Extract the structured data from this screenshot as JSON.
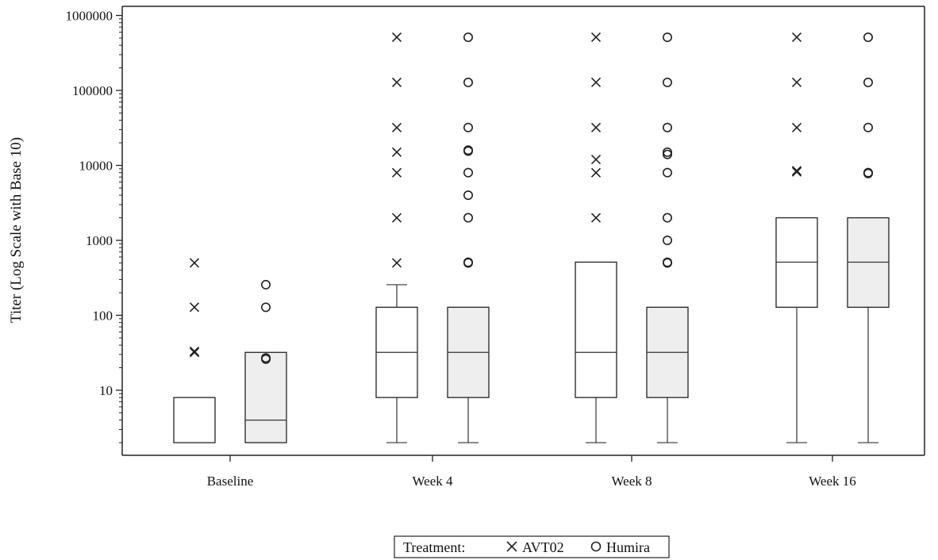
{
  "chart_data": {
    "type": "boxplot",
    "ylabel": "Titer (Log Scale with Base 10)",
    "xlabel": "",
    "y_scale": "log10",
    "ylim": [
      1.5,
      1500000
    ],
    "y_ticks": [
      10,
      100,
      1000,
      10000,
      100000,
      1000000
    ],
    "y_tick_labels": [
      "10",
      "100",
      "1000",
      "10000",
      "100000",
      "1000000"
    ],
    "categories": [
      "Baseline",
      "Week 4",
      "Week 8",
      "Week 16"
    ],
    "legend": {
      "title": "Treatment:",
      "position": "bottom-center"
    },
    "series": [
      {
        "name": "AVT02",
        "marker": "x",
        "fill": "#ffffff",
        "boxes": [
          {
            "min": 2,
            "q1": 2,
            "median": 2,
            "q3": 8,
            "max": 8,
            "outliers": [
              500,
              128,
              32,
              33
            ]
          },
          {
            "min": 2,
            "q1": 8,
            "median": 32,
            "q3": 128,
            "max": 256,
            "outliers": [
              512000,
              128000,
              32000,
              15000,
              8000,
              2000,
              500
            ]
          },
          {
            "min": 2,
            "q1": 8,
            "median": 32,
            "q3": 512,
            "max": 512,
            "outliers": [
              512000,
              128000,
              32000,
              12000,
              8000,
              2000
            ]
          },
          {
            "min": 2,
            "q1": 128,
            "median": 512,
            "q3": 2000,
            "max": 2000,
            "outliers": [
              512000,
              128000,
              32000,
              8500,
              8200
            ]
          }
        ]
      },
      {
        "name": "Humira",
        "marker": "circle",
        "fill": "#eeeeee",
        "boxes": [
          {
            "min": 2,
            "q1": 2,
            "median": 4,
            "q3": 32,
            "max": 32,
            "outliers": [
              256,
              128,
              27,
              26
            ]
          },
          {
            "min": 2,
            "q1": 8,
            "median": 32,
            "q3": 128,
            "max": 128,
            "outliers": [
              512000,
              128000,
              32000,
              16000,
              15500,
              8000,
              4000,
              2000,
              500,
              510
            ]
          },
          {
            "min": 2,
            "q1": 8,
            "median": 32,
            "q3": 128,
            "max": 128,
            "outliers": [
              512000,
              128000,
              32000,
              15000,
              14000,
              8000,
              2000,
              1000,
              500,
              510
            ]
          },
          {
            "min": 2,
            "q1": 128,
            "median": 512,
            "q3": 2000,
            "max": 2000,
            "outliers": [
              512000,
              128000,
              32000,
              8000,
              7800
            ]
          }
        ]
      }
    ]
  }
}
